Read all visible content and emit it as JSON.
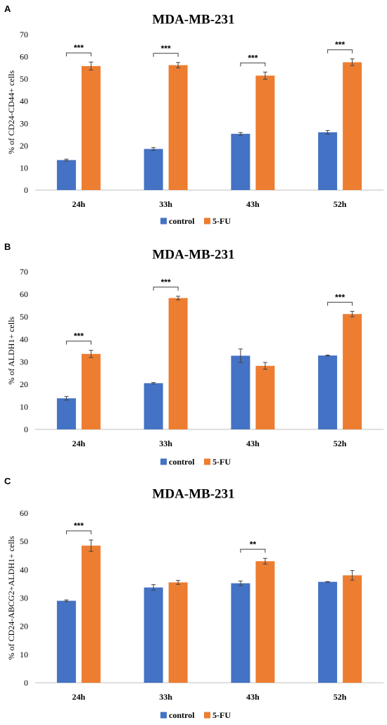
{
  "chart_data": [
    {
      "type": "bar",
      "panel": "A",
      "title": "MDA-MB-231",
      "ylabel": "% of CD24-CD44+ cells",
      "xlabel": "",
      "ylim": [
        0,
        70
      ],
      "yticks": [
        0,
        10,
        20,
        30,
        40,
        50,
        60,
        70
      ],
      "categories": [
        "24h",
        "33h",
        "43h",
        "52h"
      ],
      "series": [
        {
          "name": "control",
          "color": "#4472C4",
          "values": [
            13.5,
            18.5,
            25.3,
            26.0
          ],
          "errors": [
            0.4,
            0.6,
            0.6,
            0.8
          ]
        },
        {
          "name": "5-FU",
          "color": "#ED7D31",
          "values": [
            55.8,
            56.2,
            51.5,
            57.5
          ],
          "errors": [
            1.8,
            1.2,
            1.6,
            1.5
          ]
        }
      ],
      "significance": [
        "***",
        "***",
        "***",
        "***"
      ],
      "legend": "bottom"
    },
    {
      "type": "bar",
      "panel": "B",
      "title": "MDA-MB-231",
      "ylabel": "% of ALDH1+ cells",
      "xlabel": "",
      "ylim": [
        0,
        70
      ],
      "yticks": [
        0,
        10,
        20,
        30,
        40,
        50,
        60,
        70
      ],
      "categories": [
        "24h",
        "33h",
        "43h",
        "52h"
      ],
      "series": [
        {
          "name": "control",
          "color": "#4472C4",
          "values": [
            13.8,
            20.5,
            32.7,
            32.8
          ],
          "errors": [
            0.8,
            0.3,
            3.0,
            0.2
          ]
        },
        {
          "name": "5-FU",
          "color": "#ED7D31",
          "values": [
            33.5,
            58.3,
            28.2,
            51.2
          ],
          "errors": [
            1.6,
            0.8,
            1.5,
            1.2
          ]
        }
      ],
      "significance": [
        "***",
        "***",
        "",
        "***"
      ],
      "legend": "bottom"
    },
    {
      "type": "bar",
      "panel": "C",
      "title": "MDA-MB-231",
      "ylabel": "% of CD24-ABCG2+ALDH1+ cells",
      "xlabel": "",
      "ylim": [
        0,
        60
      ],
      "yticks": [
        0,
        10,
        20,
        30,
        40,
        50,
        60
      ],
      "categories": [
        "24h",
        "33h",
        "43h",
        "52h"
      ],
      "series": [
        {
          "name": "control",
          "color": "#4472C4",
          "values": [
            29.0,
            33.7,
            35.2,
            35.7
          ],
          "errors": [
            0.3,
            1.0,
            0.8,
            0.1
          ]
        },
        {
          "name": "5-FU",
          "color": "#ED7D31",
          "values": [
            48.5,
            35.5,
            43.0,
            38.0
          ],
          "errors": [
            2.0,
            0.7,
            1.0,
            1.7
          ]
        }
      ],
      "significance": [
        "***",
        "",
        "**",
        ""
      ],
      "legend": "bottom"
    }
  ]
}
